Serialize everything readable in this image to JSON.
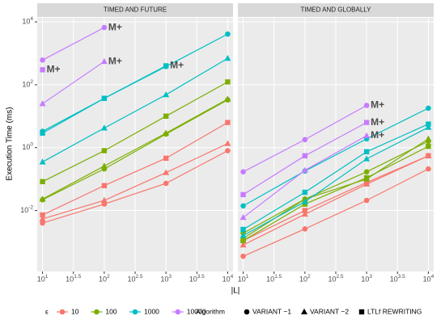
{
  "chart_data": [
    {
      "type": "line",
      "title": "TIMED AND FUTURE",
      "x": [
        10,
        100,
        1000,
        10000
      ],
      "xlim": [
        8.2,
        12200
      ],
      "xticks": [
        {
          "value": 10,
          "label": "10^1"
        },
        {
          "value": 31.6228,
          "label": "10^1.5"
        },
        {
          "value": 100,
          "label": "10^2"
        },
        {
          "value": 316.228,
          "label": "10^2.5"
        },
        {
          "value": 1000,
          "label": "10^3"
        },
        {
          "value": 3162.28,
          "label": "10^3.5"
        },
        {
          "value": 10000,
          "label": "10^4"
        }
      ],
      "ylim": [
        0.000115,
        13500
      ],
      "yticks": [
        {
          "value": 0.01,
          "label": "10^-2"
        },
        {
          "value": 1,
          "label": "10^0"
        },
        {
          "value": 100,
          "label": "10^2"
        },
        {
          "value": 10000,
          "label": "10^4"
        }
      ],
      "log_x": true,
      "log_y": true,
      "grid": true,
      "series": [
        {
          "color": "#F8766D",
          "shape": "circle",
          "values": [
            0.004,
            0.016,
            0.073,
            0.8
          ]
        },
        {
          "color": "#F8766D",
          "shape": "triangle",
          "values": [
            0.0054,
            0.021,
            0.16,
            1.35
          ]
        },
        {
          "color": "#F8766D",
          "shape": "square",
          "values": [
            0.0072,
            0.062,
            0.46,
            6.3
          ]
        },
        {
          "color": "#7CAE00",
          "shape": "circle",
          "values": [
            0.022,
            0.21,
            2.7,
            33
          ]
        },
        {
          "color": "#7CAE00",
          "shape": "triangle",
          "values": [
            0.023,
            0.26,
            2.9,
            35
          ]
        },
        {
          "color": "#7CAE00",
          "shape": "square",
          "values": [
            0.083,
            0.8,
            10,
            123
          ]
        },
        {
          "color": "#00BFC4",
          "shape": "circle",
          "values": [
            3.3,
            37,
            380,
            4100
          ]
        },
        {
          "color": "#00BFC4",
          "shape": "triangle",
          "values": [
            0.35,
            4.2,
            48,
            690
          ]
        },
        {
          "color": "#00BFC4",
          "shape": "square",
          "values": [
            2.9,
            37,
            400,
            null
          ]
        },
        {
          "color": "#C77CFF",
          "shape": "circle",
          "values": [
            610,
            6600,
            null,
            null
          ]
        },
        {
          "color": "#C77CFF",
          "shape": "triangle",
          "values": [
            25,
            550,
            null,
            null
          ]
        },
        {
          "color": "#C77CFF",
          "shape": "square",
          "values": [
            300,
            null,
            null,
            null
          ]
        }
      ],
      "annotations": [
        {
          "text": "M+",
          "x": 100,
          "y": 6600,
          "color": "#C77CFF"
        },
        {
          "text": "M+",
          "x": 100,
          "y": 550,
          "color": "#C77CFF"
        },
        {
          "text": "M+",
          "x": 10,
          "y": 300,
          "color": "#C77CFF"
        },
        {
          "text": "M+",
          "x": 1000,
          "y": 400,
          "color": "#00BFC4"
        }
      ]
    },
    {
      "type": "line",
      "title": "TIMED AND GLOBALLY",
      "x": [
        10,
        100,
        1000,
        10000
      ],
      "xlim": [
        8.2,
        12200
      ],
      "xticks": [
        {
          "value": 10,
          "label": "10^1"
        },
        {
          "value": 31.6228,
          "label": "10^1.5"
        },
        {
          "value": 100,
          "label": "10^2"
        },
        {
          "value": 316.228,
          "label": "10^2.5"
        },
        {
          "value": 1000,
          "label": "10^3"
        },
        {
          "value": 3162.28,
          "label": "10^3.5"
        },
        {
          "value": 10000,
          "label": "10^4"
        }
      ],
      "ylim": [
        0.000115,
        13500
      ],
      "yticks": [
        0.01,
        1,
        100,
        10000
      ],
      "log_x": true,
      "log_y": true,
      "grid": true,
      "series": [
        {
          "color": "#F8766D",
          "shape": "circle",
          "values": [
            0.00035,
            0.0026,
            0.021,
            0.21
          ]
        },
        {
          "color": "#F8766D",
          "shape": "triangle",
          "values": [
            0.0008,
            0.0076,
            0.069,
            0.55
          ]
        },
        {
          "color": "#F8766D",
          "shape": "square",
          "values": [
            0.0011,
            0.01,
            0.078,
            0.55
          ]
        },
        {
          "color": "#7CAE00",
          "shape": "circle",
          "values": [
            0.0019,
            0.023,
            0.17,
            1.6
          ]
        },
        {
          "color": "#7CAE00",
          "shape": "triangle",
          "values": [
            0.0013,
            0.023,
            0.1,
            1.9
          ]
        },
        {
          "color": "#7CAE00",
          "shape": "square",
          "values": [
            0.0011,
            0.016,
            0.11,
            1.1
          ]
        },
        {
          "color": "#00BFC4",
          "shape": "circle",
          "values": [
            0.014,
            0.18,
            1.9,
            18
          ]
        },
        {
          "color": "#00BFC4",
          "shape": "triangle",
          "values": [
            0.0016,
            0.019,
            0.44,
            4.4
          ]
        },
        {
          "color": "#00BFC4",
          "shape": "square",
          "values": [
            0.0025,
            0.038,
            0.74,
            5.6
          ]
        },
        {
          "color": "#C77CFF",
          "shape": "circle",
          "values": [
            0.17,
            1.8,
            22,
            null
          ]
        },
        {
          "color": "#C77CFF",
          "shape": "triangle",
          "values": [
            0.006,
            0.19,
            2.4,
            null
          ]
        },
        {
          "color": "#C77CFF",
          "shape": "square",
          "values": [
            0.032,
            0.55,
            6.3,
            null
          ]
        }
      ],
      "annotations": [
        {
          "text": "M+",
          "x": 1000,
          "y": 22,
          "color": "#C77CFF"
        },
        {
          "text": "M+",
          "x": 1000,
          "y": 6.3,
          "color": "#C77CFF"
        },
        {
          "text": "M+",
          "x": 1000,
          "y": 2.4,
          "color": "#C77CFF"
        }
      ]
    }
  ],
  "axis_labels": {
    "x": "|L|",
    "y": "Execution Time (ms)"
  },
  "legend": {
    "color_title": "ε",
    "colors": [
      {
        "label": "10",
        "color": "#F8766D"
      },
      {
        "label": "100",
        "color": "#7CAE00"
      },
      {
        "label": "1000",
        "color": "#00BFC4"
      },
      {
        "label": "10000",
        "color": "#C77CFF"
      }
    ],
    "shape_title": "Algorithm",
    "shapes": [
      {
        "label": "VARIANT −1",
        "shape": "circle"
      },
      {
        "label": "VARIANT −2",
        "shape": "triangle"
      },
      {
        "label": "LTLf REWRITING",
        "shape": "square"
      }
    ]
  }
}
